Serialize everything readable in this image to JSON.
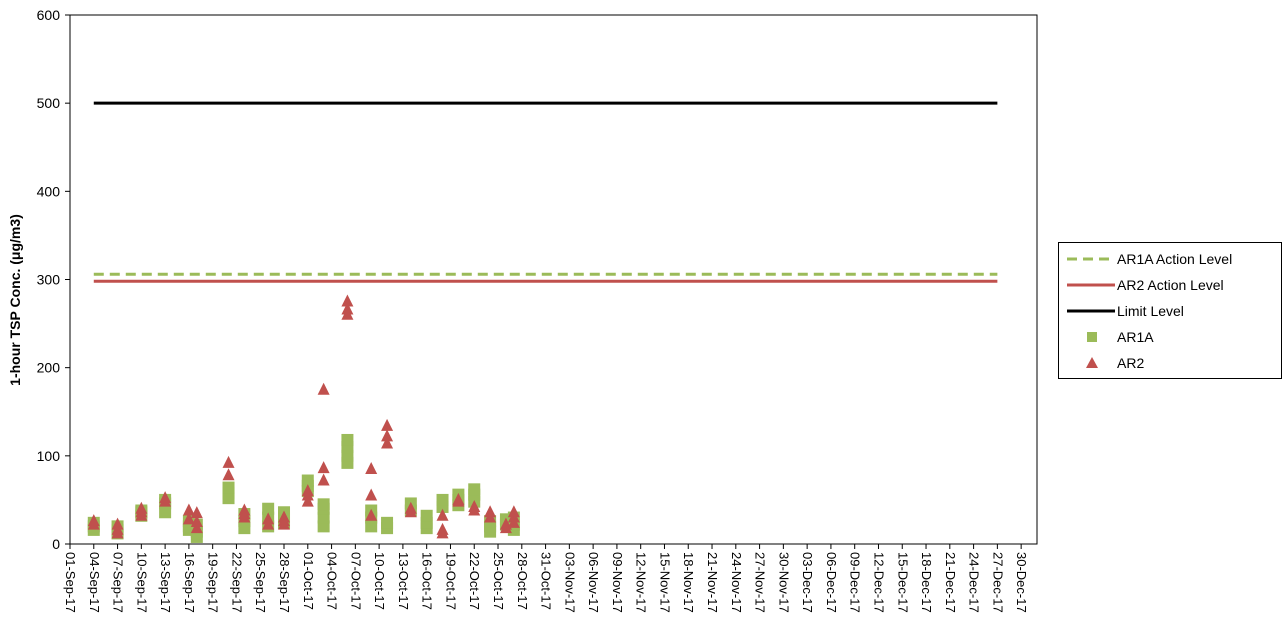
{
  "chart_data": {
    "type": "scatter",
    "ylabel": "1-hour TSP Conc. (μg/m3)",
    "xlabel": "",
    "ylim": [
      0,
      600
    ],
    "yticks": [
      0,
      100,
      200,
      300,
      400,
      500,
      600
    ],
    "x_tick_labels": [
      "01-Sep-17",
      "04-Sep-17",
      "07-Sep-17",
      "10-Sep-17",
      "13-Sep-17",
      "16-Sep-17",
      "19-Sep-17",
      "22-Sep-17",
      "25-Sep-17",
      "28-Sep-17",
      "01-Oct-17",
      "04-Oct-17",
      "07-Oct-17",
      "10-Oct-17",
      "13-Oct-17",
      "16-Oct-17",
      "19-Oct-17",
      "22-Oct-17",
      "25-Oct-17",
      "28-Oct-17",
      "31-Oct-17",
      "03-Nov-17",
      "06-Nov-17",
      "09-Nov-17",
      "12-Nov-17",
      "15-Nov-17",
      "18-Nov-17",
      "21-Nov-17",
      "24-Nov-17",
      "27-Nov-17",
      "30-Nov-17",
      "03-Dec-17",
      "06-Dec-17",
      "09-Dec-17",
      "12-Dec-17",
      "15-Dec-17",
      "18-Dec-17",
      "21-Dec-17",
      "24-Dec-17",
      "27-Dec-17",
      "30-Dec-17"
    ],
    "x_range": [
      "01-Sep-17",
      "01-Jan-18"
    ],
    "legend_position": "right",
    "grid": false,
    "lines": [
      {
        "name": "AR1A Action Level",
        "value": 306,
        "color": "#9BBB59",
        "style": "dashed",
        "x": [
          "04-Sep-17",
          "27-Dec-17"
        ]
      },
      {
        "name": "AR2 Action Level",
        "value": 298,
        "color": "#C0504D",
        "style": "solid",
        "x": [
          "04-Sep-17",
          "27-Dec-17"
        ]
      },
      {
        "name": "Limit Level",
        "value": 500,
        "color": "#000000",
        "style": "solid",
        "x": [
          "04-Sep-17",
          "27-Dec-17"
        ]
      }
    ],
    "series": [
      {
        "name": "AR1A",
        "marker": "square",
        "color": "#9BBB59",
        "points": [
          [
            "04-Sep-17",
            16
          ],
          [
            "04-Sep-17",
            20
          ],
          [
            "04-Sep-17",
            24
          ],
          [
            "07-Sep-17",
            12
          ],
          [
            "07-Sep-17",
            16
          ],
          [
            "07-Sep-17",
            20
          ],
          [
            "10-Sep-17",
            32
          ],
          [
            "10-Sep-17",
            36
          ],
          [
            "10-Sep-17",
            38
          ],
          [
            "13-Sep-17",
            36
          ],
          [
            "13-Sep-17",
            46
          ],
          [
            "13-Sep-17",
            50
          ],
          [
            "16-Sep-17",
            16
          ],
          [
            "16-Sep-17",
            20
          ],
          [
            "16-Sep-17",
            26
          ],
          [
            "17-Sep-17",
            8
          ],
          [
            "17-Sep-17",
            14
          ],
          [
            "17-Sep-17",
            22
          ],
          [
            "21-Sep-17",
            52
          ],
          [
            "21-Sep-17",
            58
          ],
          [
            "21-Sep-17",
            64
          ],
          [
            "23-Sep-17",
            18
          ],
          [
            "23-Sep-17",
            26
          ],
          [
            "23-Sep-17",
            34
          ],
          [
            "26-Sep-17",
            20
          ],
          [
            "26-Sep-17",
            30
          ],
          [
            "26-Sep-17",
            40
          ],
          [
            "28-Sep-17",
            24
          ],
          [
            "28-Sep-17",
            30
          ],
          [
            "28-Sep-17",
            36
          ],
          [
            "01-Oct-17",
            60
          ],
          [
            "01-Oct-17",
            66
          ],
          [
            "01-Oct-17",
            72
          ],
          [
            "03-Oct-17",
            20
          ],
          [
            "03-Oct-17",
            30
          ],
          [
            "03-Oct-17",
            40
          ],
          [
            "03-Oct-17",
            45
          ],
          [
            "06-Oct-17",
            92
          ],
          [
            "06-Oct-17",
            100
          ],
          [
            "06-Oct-17",
            110
          ],
          [
            "06-Oct-17",
            118
          ],
          [
            "09-Oct-17",
            20
          ],
          [
            "09-Oct-17",
            30
          ],
          [
            "09-Oct-17",
            38
          ],
          [
            "11-Oct-17",
            18
          ],
          [
            "11-Oct-17",
            24
          ],
          [
            "14-Oct-17",
            38
          ],
          [
            "14-Oct-17",
            46
          ],
          [
            "16-Oct-17",
            18
          ],
          [
            "16-Oct-17",
            24
          ],
          [
            "16-Oct-17",
            32
          ],
          [
            "18-Oct-17",
            42
          ],
          [
            "18-Oct-17",
            50
          ],
          [
            "20-Oct-17",
            44
          ],
          [
            "20-Oct-17",
            50
          ],
          [
            "20-Oct-17",
            56
          ],
          [
            "22-Oct-17",
            48
          ],
          [
            "22-Oct-17",
            56
          ],
          [
            "22-Oct-17",
            62
          ],
          [
            "24-Oct-17",
            14
          ],
          [
            "24-Oct-17",
            20
          ],
          [
            "24-Oct-17",
            26
          ],
          [
            "26-Oct-17",
            22
          ],
          [
            "26-Oct-17",
            28
          ],
          [
            "27-Oct-17",
            16
          ],
          [
            "27-Oct-17",
            22
          ],
          [
            "27-Oct-17",
            30
          ]
        ]
      },
      {
        "name": "AR2",
        "marker": "triangle",
        "color": "#C0504D",
        "points": [
          [
            "04-Sep-17",
            26
          ],
          [
            "04-Sep-17",
            22
          ],
          [
            "07-Sep-17",
            22
          ],
          [
            "07-Sep-17",
            16
          ],
          [
            "07-Sep-17",
            12
          ],
          [
            "10-Sep-17",
            40
          ],
          [
            "10-Sep-17",
            36
          ],
          [
            "10-Sep-17",
            32
          ],
          [
            "13-Sep-17",
            52
          ],
          [
            "13-Sep-17",
            48
          ],
          [
            "16-Sep-17",
            38
          ],
          [
            "16-Sep-17",
            28
          ],
          [
            "17-Sep-17",
            35
          ],
          [
            "17-Sep-17",
            25
          ],
          [
            "17-Sep-17",
            18
          ],
          [
            "21-Sep-17",
            92
          ],
          [
            "21-Sep-17",
            78
          ],
          [
            "23-Sep-17",
            38
          ],
          [
            "23-Sep-17",
            34
          ],
          [
            "23-Sep-17",
            30
          ],
          [
            "26-Sep-17",
            28
          ],
          [
            "26-Sep-17",
            22
          ],
          [
            "28-Sep-17",
            30
          ],
          [
            "28-Sep-17",
            26
          ],
          [
            "28-Sep-17",
            22
          ],
          [
            "01-Oct-17",
            60
          ],
          [
            "01-Oct-17",
            55
          ],
          [
            "01-Oct-17",
            48
          ],
          [
            "03-Oct-17",
            175
          ],
          [
            "03-Oct-17",
            86
          ],
          [
            "03-Oct-17",
            72
          ],
          [
            "06-Oct-17",
            275
          ],
          [
            "06-Oct-17",
            266
          ],
          [
            "06-Oct-17",
            260
          ],
          [
            "09-Oct-17",
            85
          ],
          [
            "09-Oct-17",
            55
          ],
          [
            "09-Oct-17",
            32
          ],
          [
            "11-Oct-17",
            134
          ],
          [
            "11-Oct-17",
            122
          ],
          [
            "11-Oct-17",
            114
          ],
          [
            "14-Oct-17",
            40
          ],
          [
            "14-Oct-17",
            36
          ],
          [
            "18-Oct-17",
            32
          ],
          [
            "18-Oct-17",
            16
          ],
          [
            "18-Oct-17",
            12
          ],
          [
            "20-Oct-17",
            50
          ],
          [
            "20-Oct-17",
            48
          ],
          [
            "22-Oct-17",
            42
          ],
          [
            "22-Oct-17",
            38
          ],
          [
            "24-Oct-17",
            36
          ],
          [
            "24-Oct-17",
            30
          ],
          [
            "26-Oct-17",
            22
          ],
          [
            "26-Oct-17",
            18
          ],
          [
            "27-Oct-17",
            36
          ],
          [
            "27-Oct-17",
            30
          ],
          [
            "27-Oct-17",
            24
          ]
        ]
      }
    ]
  }
}
